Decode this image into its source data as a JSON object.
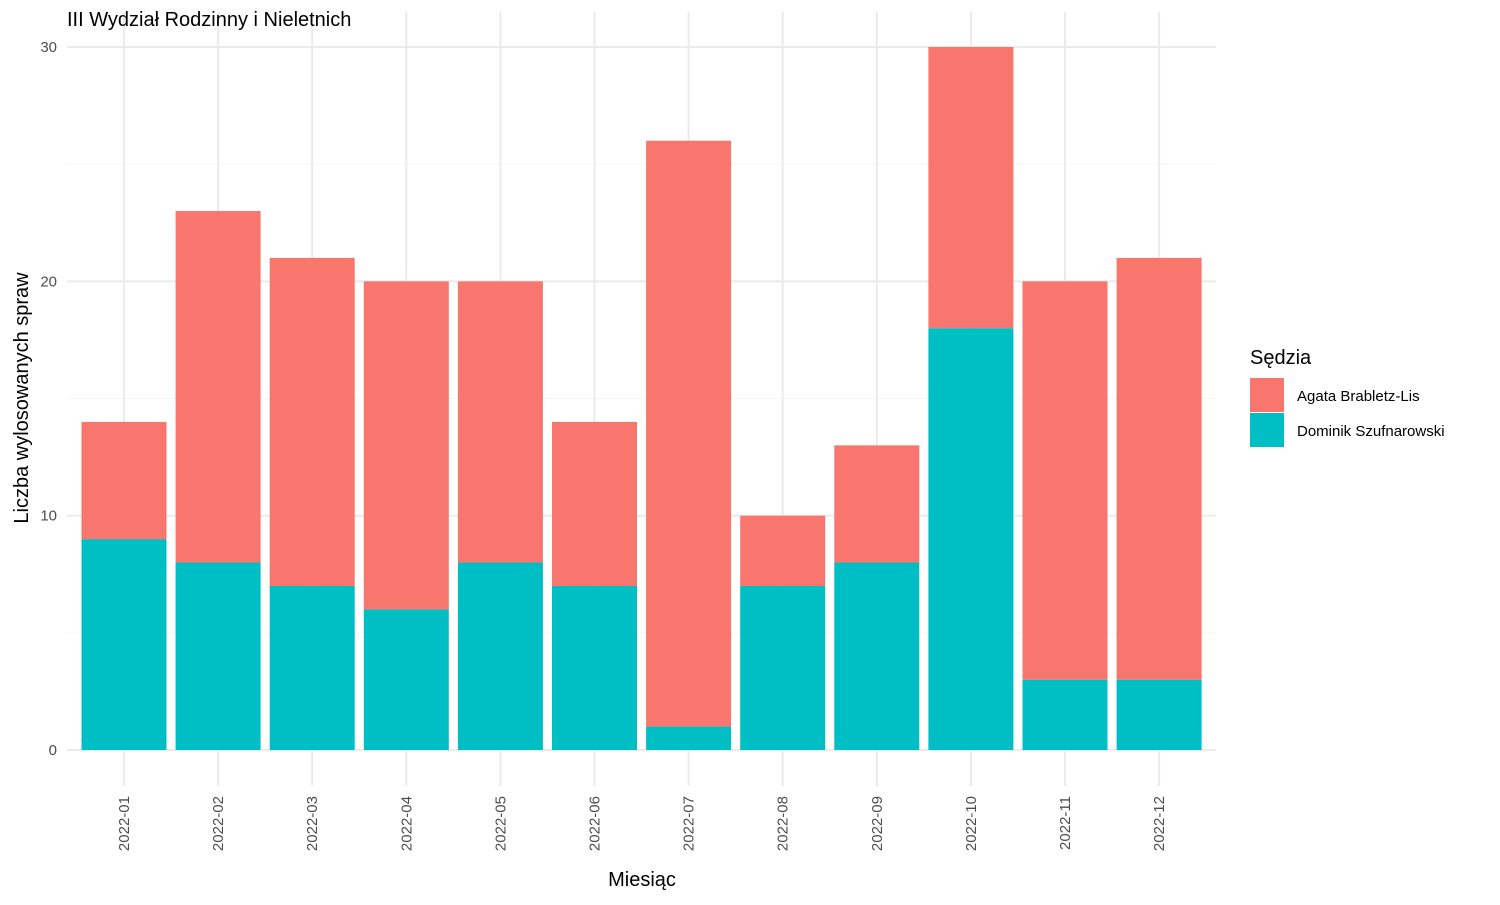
{
  "chart_data": {
    "type": "bar",
    "stacked": true,
    "title": "III Wydział Rodzinny i Nieletnich",
    "xlabel": "Miesiąc",
    "ylabel": "Liczba wylosowanych spraw",
    "categories": [
      "2022-01",
      "2022-02",
      "2022-03",
      "2022-04",
      "2022-05",
      "2022-06",
      "2022-07",
      "2022-08",
      "2022-09",
      "2022-10",
      "2022-11",
      "2022-12"
    ],
    "series": [
      {
        "name": "Dominik Szufnarowski",
        "color": "#00BFC4",
        "values": [
          9,
          8,
          7,
          6,
          8,
          7,
          1,
          7,
          8,
          18,
          3,
          3
        ]
      },
      {
        "name": "Agata Brabletz-Lis",
        "color": "#F8766D",
        "values": [
          5,
          15,
          14,
          14,
          12,
          7,
          25,
          3,
          5,
          12,
          17,
          18
        ]
      }
    ],
    "ylim": [
      0,
      30
    ],
    "yticks": [
      "0",
      "10",
      "20",
      "30"
    ],
    "grid": true,
    "legend": {
      "title": "Sędzia",
      "position": "right",
      "entries": [
        {
          "label": "Agata Brabletz-Lis",
          "color": "#F8766D"
        },
        {
          "label": "Dominik Szufnarowski",
          "color": "#00BFC4"
        }
      ]
    }
  }
}
